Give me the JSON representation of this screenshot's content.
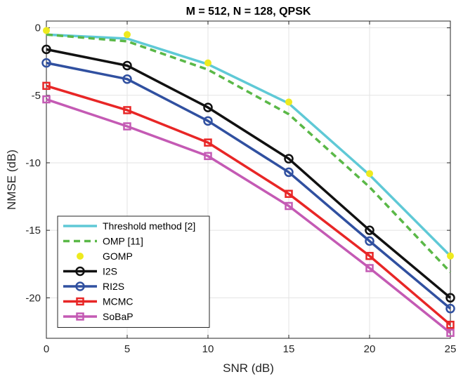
{
  "chart_data": {
    "type": "line",
    "title": "M = 512, N = 128, QPSK",
    "xlabel": "SNR (dB)",
    "ylabel": "NMSE (dB)",
    "xlim": [
      0,
      25
    ],
    "ylim": [
      -23,
      0.5
    ],
    "xticks": [
      0,
      5,
      10,
      15,
      20,
      25
    ],
    "yticks": [
      0,
      -5,
      -10,
      -15,
      -20
    ],
    "xtick_labels": [
      "0",
      "5",
      "10",
      "15",
      "20",
      "25"
    ],
    "ytick_labels": [
      "0",
      "-5",
      "-10",
      "-15",
      "-20"
    ],
    "grid": true,
    "legend_position": "bottom-left",
    "x": [
      0,
      5,
      10,
      15,
      20,
      25
    ],
    "series": [
      {
        "name": "Threshold method [2]",
        "values": [
          -0.5,
          -0.8,
          -2.7,
          -5.6,
          -10.9,
          -16.9
        ],
        "color": "#5fc9d6",
        "style": "solid",
        "marker": "none"
      },
      {
        "name": "OMP [11]",
        "values": [
          -0.5,
          -1.0,
          -3.1,
          -6.4,
          -11.8,
          -18.1
        ],
        "color": "#5ab847",
        "style": "dashed",
        "marker": "none"
      },
      {
        "name": "GOMP",
        "values": [
          -0.2,
          -0.5,
          -2.6,
          -5.5,
          -10.8,
          -16.9
        ],
        "color": "#eeea1e",
        "style": "none",
        "marker": "dot"
      },
      {
        "name": "I2S",
        "values": [
          -1.6,
          -2.8,
          -5.9,
          -9.7,
          -15.0,
          -20.0
        ],
        "color": "#111111",
        "style": "solid",
        "marker": "circle"
      },
      {
        "name": "RI2S",
        "values": [
          -2.6,
          -3.8,
          -6.9,
          -10.7,
          -15.8,
          -20.8
        ],
        "color": "#3050a0",
        "style": "solid",
        "marker": "circle"
      },
      {
        "name": "MCMC",
        "values": [
          -4.3,
          -6.1,
          -8.5,
          -12.3,
          -16.9,
          -22.0
        ],
        "color": "#e82626",
        "style": "solid",
        "marker": "square"
      },
      {
        "name": "SoBaP",
        "values": [
          -5.3,
          -7.3,
          -9.5,
          -13.2,
          -17.8,
          -22.6
        ],
        "color": "#c45ab4",
        "style": "solid",
        "marker": "square"
      }
    ]
  }
}
